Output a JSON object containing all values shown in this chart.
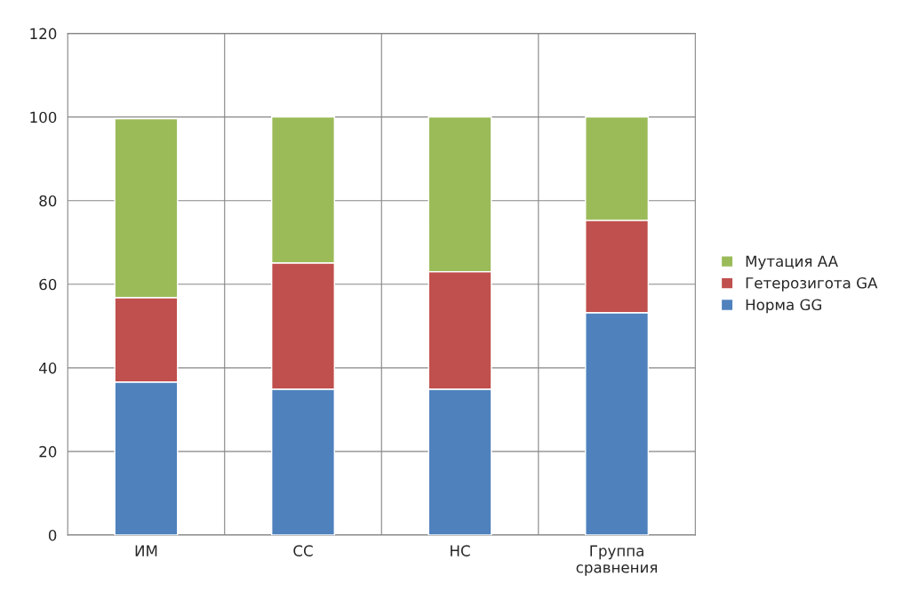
{
  "chart_data": {
    "type": "bar",
    "stacked": true,
    "categories": [
      "ИМ",
      "СС",
      "НС",
      "Группа\nсравнения"
    ],
    "series": [
      {
        "name": "Норма GG",
        "color": "#4f81bd",
        "values": [
          36.6,
          34.9,
          34.9,
          53.2
        ]
      },
      {
        "name": "Гетерозигота GA",
        "color": "#c0504d",
        "values": [
          20.2,
          30.2,
          28.1,
          22.1
        ]
      },
      {
        "name": "Мутация AA",
        "color": "#9bbb59",
        "values": [
          42.8,
          34.9,
          37.0,
          24.7
        ]
      }
    ],
    "ylim": [
      0,
      120
    ],
    "yticks": [
      0,
      20,
      40,
      60,
      80,
      100,
      120
    ],
    "grid": true,
    "legend": "right"
  }
}
